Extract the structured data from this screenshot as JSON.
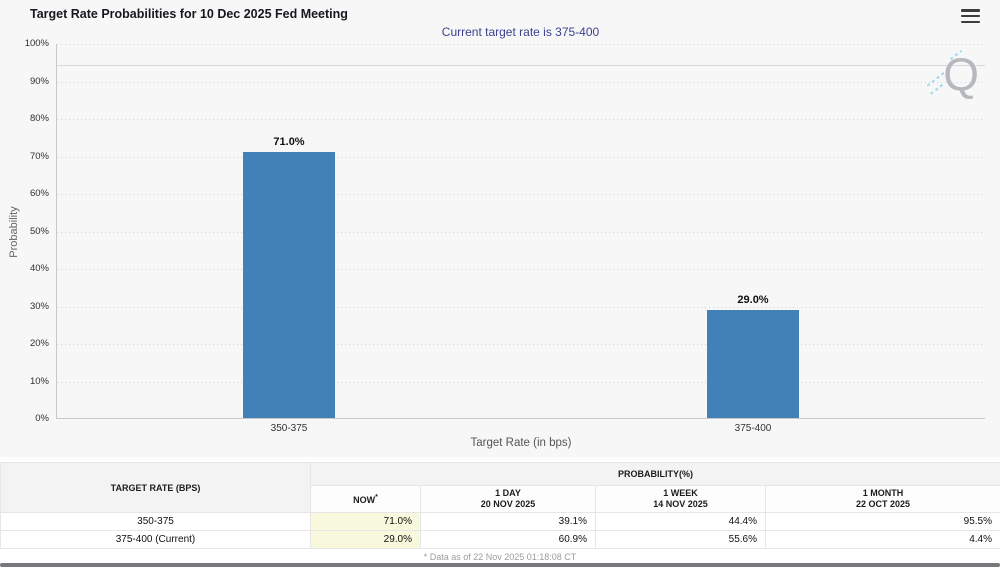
{
  "header": {
    "title": "Target Rate Probabilities for 10 Dec 2025 Fed Meeting"
  },
  "chart": {
    "subtitle": "Current target rate is 375-400",
    "y_axis_title": "Probability",
    "x_axis_title": "Target Rate (in bps)",
    "y_ticks": [
      "100%",
      "90%",
      "80%",
      "70%",
      "60%",
      "50%",
      "40%",
      "30%",
      "20%",
      "10%",
      "0%"
    ],
    "watermark": "Q"
  },
  "chart_data": {
    "type": "bar",
    "title": "Target Rate Probabilities for 10 Dec 2025 Fed Meeting",
    "subtitle": "Current target rate is 375-400",
    "categories": [
      "350-375",
      "375-400"
    ],
    "values": [
      71.0,
      29.0
    ],
    "value_labels": [
      "71.0%",
      "29.0%"
    ],
    "xlabel": "Target Rate (in bps)",
    "ylabel": "Probability",
    "ylim": [
      0,
      100
    ],
    "ytick_step": 10,
    "grid": "dotted-horizontal",
    "legend": "none",
    "bar_color": "#4280b8"
  },
  "table": {
    "rate_header": "TARGET RATE (BPS)",
    "group_header": "PROBABILITY(%)",
    "columns": [
      {
        "label": "NOW",
        "sup": "*",
        "date": ""
      },
      {
        "label": "1 DAY",
        "date": "20 NOV 2025"
      },
      {
        "label": "1 WEEK",
        "date": "14 NOV 2025"
      },
      {
        "label": "1 MONTH",
        "date": "22 OCT 2025"
      }
    ],
    "rows": [
      {
        "rate": "350-375",
        "now": "71.0%",
        "one_day": "39.1%",
        "one_week": "44.4%",
        "one_month": "95.5%"
      },
      {
        "rate": "375-400 (Current)",
        "now": "29.0%",
        "one_day": "60.9%",
        "one_week": "55.6%",
        "one_month": "4.4%"
      }
    ],
    "footnote": "* Data as of 22 Nov 2025 01:18:08 CT"
  },
  "colors": {
    "bar": "#4280b8",
    "now_column_bg": "#f8f8dc",
    "subtitle_text": "#3d4290",
    "chart_bg": "#f7f7f7"
  }
}
